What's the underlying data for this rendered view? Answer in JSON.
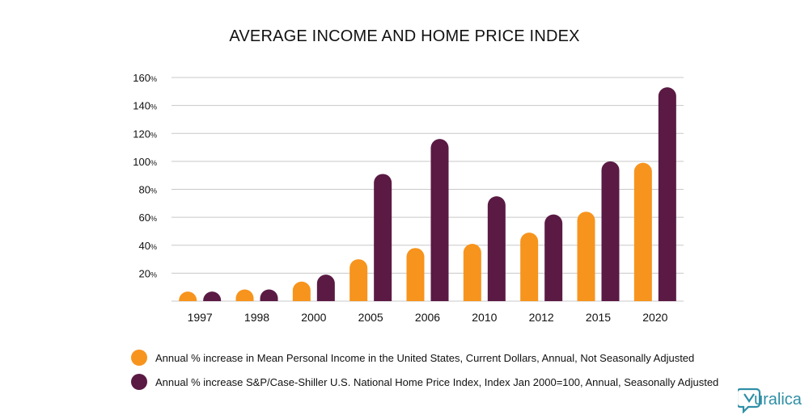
{
  "chart_data": {
    "type": "bar",
    "title": "AVERAGE INCOME AND HOME PRICE INDEX",
    "categories": [
      "1997",
      "1998",
      "2000",
      "2005",
      "2006",
      "2010",
      "2012",
      "2015",
      "2020"
    ],
    "series": [
      {
        "name": "Annual % increase in Mean Personal Income in the United States, Current Dollars, Annual, Not Seasonally Adjusted",
        "color": "#f7941d",
        "values": [
          1,
          4,
          14,
          30,
          38,
          41,
          49,
          64,
          99
        ]
      },
      {
        "name": "Annual % increase S&P/Case-Shiller U.S. National Home Price Index, Index Jan 2000=100, Annual, Seasonally Adjusted",
        "color": "#5a1a44",
        "values": [
          1,
          4,
          19,
          91,
          116,
          75,
          62,
          100,
          153
        ]
      }
    ],
    "yticks": [
      "20%",
      "40%",
      "60%",
      "80%",
      "100%",
      "120%",
      "140%",
      "160%"
    ],
    "ylim": [
      0,
      160
    ],
    "grid": true,
    "legend": "bottom-left"
  },
  "logo": {
    "text": "uralica",
    "color": "#2f8fa6"
  }
}
